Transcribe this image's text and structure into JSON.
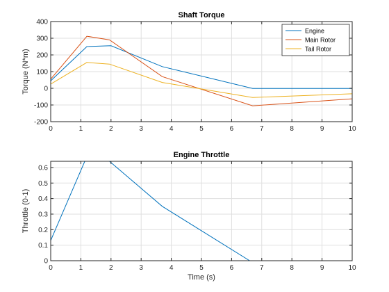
{
  "chart_data": [
    {
      "type": "line",
      "title": "Shaft Torque",
      "xlabel": "",
      "ylabel": "Torque (N*m)",
      "xlim": [
        0,
        10
      ],
      "ylim": [
        -200,
        400
      ],
      "xticks": [
        0,
        1,
        2,
        3,
        4,
        5,
        6,
        7,
        8,
        9,
        10
      ],
      "yticks": [
        -200,
        -100,
        0,
        100,
        200,
        300,
        400
      ],
      "grid": true,
      "legend_position": "top-right",
      "series": [
        {
          "name": "Engine",
          "color": "#0072BD",
          "x": [
            0,
            1.2,
            2.0,
            3.7,
            6.7,
            10
          ],
          "y": [
            45,
            250,
            255,
            130,
            -1,
            -1
          ]
        },
        {
          "name": "Main Rotor",
          "color": "#D95319",
          "x": [
            0,
            1.2,
            1.95,
            3.7,
            6.7,
            10
          ],
          "y": [
            55,
            312,
            290,
            70,
            -105,
            -63
          ]
        },
        {
          "name": "Tail Rotor",
          "color": "#EDB120",
          "x": [
            0,
            1.2,
            1.95,
            3.7,
            6.7,
            10
          ],
          "y": [
            25,
            155,
            145,
            35,
            -55,
            -33
          ]
        }
      ]
    },
    {
      "type": "line",
      "title": "Engine Throttle",
      "xlabel": "Time (s)",
      "ylabel": "Throttle (0-1)",
      "xlim": [
        0,
        10
      ],
      "ylim": [
        0,
        0.64
      ],
      "xticks": [
        0,
        1,
        2,
        3,
        4,
        5,
        6,
        7,
        8,
        9,
        10
      ],
      "yticks": [
        0,
        0.1,
        0.2,
        0.3,
        0.4,
        0.5,
        0.6
      ],
      "grid": true,
      "series": [
        {
          "name": "",
          "color": "#0072BD",
          "x": [
            0,
            1.13,
            1.95,
            3.7,
            6.6,
            6.7,
            10
          ],
          "y": [
            0.13,
            0.64,
            0.64,
            0.35,
            0.0,
            0.0,
            0.0
          ]
        }
      ]
    }
  ]
}
